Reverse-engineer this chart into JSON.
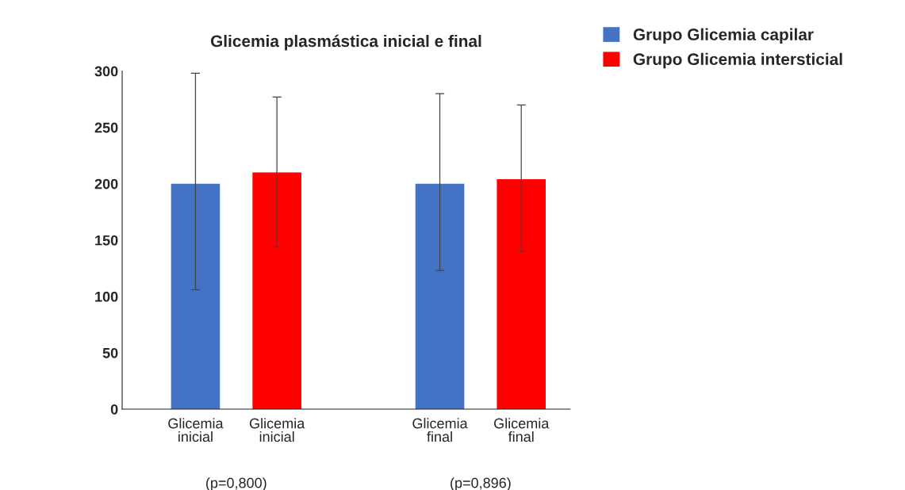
{
  "chart_data": {
    "type": "bar",
    "title": "Glicemia plasmástica inicial e final",
    "categories": [
      "Glicemia\ninicial",
      "Glicemia\ninicial",
      null,
      "Glicemia\nfinal",
      "Glicemia\nfinal"
    ],
    "series": [
      {
        "name": "Grupo Glicemia capilar",
        "color": "#4472c4",
        "values": [
          200,
          null,
          null,
          200,
          null
        ],
        "errors": [
          [
            106,
            298
          ],
          null,
          null,
          [
            123,
            280
          ],
          null
        ]
      },
      {
        "name": "Grupo Glicemia intersticial",
        "color": "#ff0000",
        "values": [
          null,
          210,
          null,
          null,
          204
        ],
        "errors": [
          null,
          [
            144,
            277
          ],
          null,
          null,
          [
            140,
            270
          ]
        ]
      }
    ],
    "annotations": [
      "(p=0,800)",
      "(p=0,896)"
    ],
    "ylim": [
      0,
      300
    ],
    "yticks": [
      0,
      50,
      100,
      150,
      200,
      250,
      300
    ],
    "grid": false,
    "legend": "top right"
  }
}
